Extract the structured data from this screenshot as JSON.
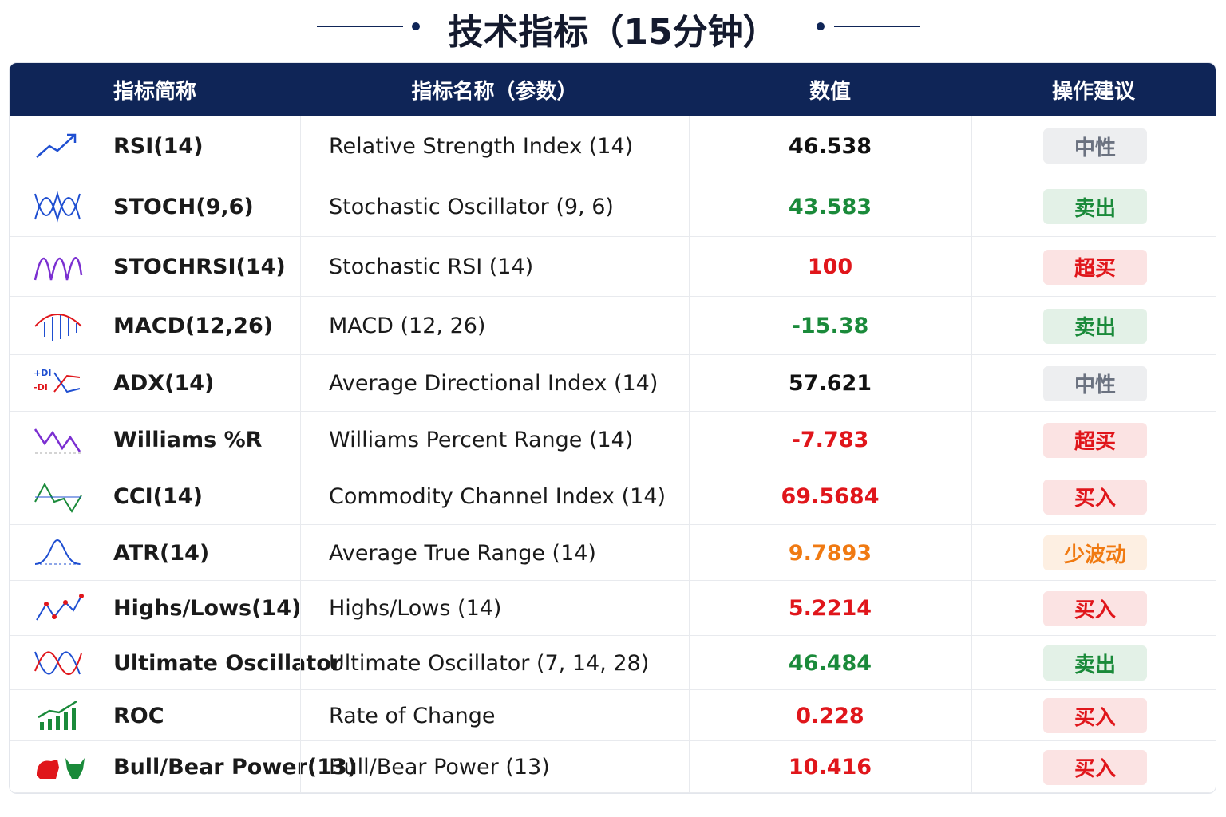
{
  "title": "技术指标（15分钟）",
  "table": {
    "headers": [
      "指标简称",
      "指标名称（参数）",
      "数值",
      "操作建议"
    ],
    "rows": [
      {
        "abbr": "RSI(14)",
        "name": "Relative Strength Index (14)",
        "value": "46.538",
        "action": "中性",
        "value_color": "#111111",
        "action_color": "#6b7280"
      },
      {
        "abbr": "STOCH(9,6)",
        "name": "Stochastic Oscillator (9, 6)",
        "value": "43.583",
        "action": "卖出",
        "value_color": "#1a8a3a",
        "action_color": "#1a8a3a"
      },
      {
        "abbr": "STOCHRSI(14)",
        "name": "Stochastic RSI (14)",
        "value": "100",
        "action": "超买",
        "value_color": "#e0161b",
        "action_color": "#e0161b"
      },
      {
        "abbr": "MACD(12,26)",
        "name": "MACD (12, 26)",
        "value": "-15.38",
        "action": "卖出",
        "value_color": "#1a8a3a",
        "action_color": "#1a8a3a"
      },
      {
        "abbr": "ADX(14)",
        "name": "Average Directional Index (14)",
        "value": "57.621",
        "action": "中性",
        "value_color": "#111111",
        "action_color": "#6b7280"
      },
      {
        "abbr": "Williams %R",
        "name": "Williams Percent Range (14)",
        "value": "-7.783",
        "action": "超买",
        "value_color": "#e0161b",
        "action_color": "#e0161b"
      },
      {
        "abbr": "CCI(14)",
        "name": "Commodity Channel Index (14)",
        "value": "69.5684",
        "action": "买入",
        "value_color": "#e0161b",
        "action_color": "#e0161b"
      },
      {
        "abbr": "ATR(14)",
        "name": "Average True Range (14)",
        "value": "9.7893",
        "action": "少波动",
        "value_color": "#f07a12",
        "action_color": "#f07a12"
      },
      {
        "abbr": "Highs/Lows(14)",
        "name": "Highs/Lows (14)",
        "value": "5.2214",
        "action": "买入",
        "value_color": "#e0161b",
        "action_color": "#e0161b"
      },
      {
        "abbr": "Ultimate Oscillator",
        "name": "Ultimate Oscillator (7, 14, 28)",
        "value": "46.484",
        "action": "卖出",
        "value_color": "#1a8a3a",
        "action_color": "#1a8a3a"
      },
      {
        "abbr": "ROC",
        "name": "Rate of Change",
        "value": "0.228",
        "action": "买入",
        "value_color": "#e0161b",
        "action_color": "#e0161b"
      },
      {
        "abbr": "Bull/Bear Power(13)",
        "name": "Bull/Bear Power (13)",
        "value": "10.416",
        "action": "买入",
        "value_color": "#e0161b",
        "action_color": "#e0161b"
      }
    ]
  }
}
